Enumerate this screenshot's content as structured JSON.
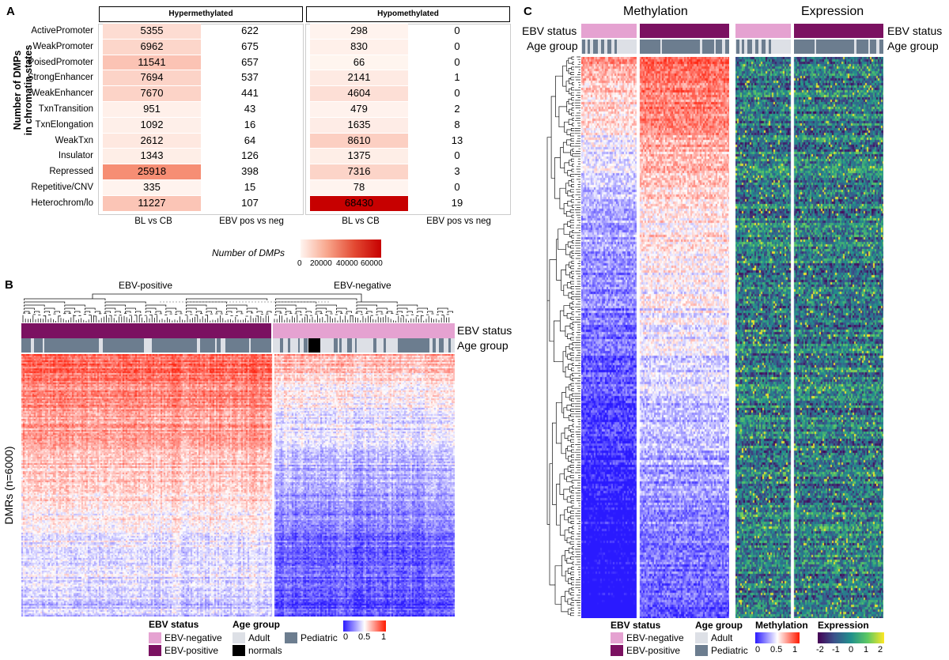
{
  "panel_a": {
    "letter": "A",
    "strip_hyper": "Hypermethylated",
    "strip_hypo": "Hypomethylated",
    "ylabel_line1": "Number of DMPs",
    "ylabel_line2": "in chromatin states",
    "xlabels": [
      "BL vs CB",
      "EBV pos vs neg",
      "BL vs CB",
      "EBV pos vs neg"
    ],
    "legend_title": "Number of DMPs",
    "legend_ticks": [
      "0",
      "20000",
      "40000",
      "60000"
    ]
  },
  "chart_data": {
    "type": "heatmap",
    "title": "Number of DMPs in chromatin states",
    "rows": [
      "ActivePromoter",
      "WeakPromoter",
      "PoisedPromoter",
      "StrongEnhancer",
      "WeakEnhancer",
      "TxnTransition",
      "TxnElongation",
      "WeakTxn",
      "Insulator",
      "Repressed",
      "Repetitive/CNV",
      "Heterochrom/lo"
    ],
    "columns": [
      "Hypermethylated BL vs CB",
      "Hypermethylated EBV pos vs neg",
      "Hypomethylated BL vs CB",
      "Hypomethylated EBV pos vs neg"
    ],
    "values": [
      [
        5355,
        622,
        298,
        0
      ],
      [
        6962,
        675,
        830,
        0
      ],
      [
        11541,
        657,
        66,
        0
      ],
      [
        7694,
        537,
        2141,
        1
      ],
      [
        7670,
        441,
        4604,
        0
      ],
      [
        951,
        43,
        479,
        2
      ],
      [
        1092,
        16,
        1635,
        8
      ],
      [
        2612,
        64,
        8610,
        13
      ],
      [
        1343,
        126,
        1375,
        0
      ],
      [
        25918,
        398,
        7316,
        3
      ],
      [
        335,
        15,
        78,
        0
      ],
      [
        11227,
        107,
        68430,
        19
      ]
    ],
    "color_range": [
      0,
      68430
    ]
  },
  "panel_b": {
    "letter": "B",
    "group_pos": "EBV-positive",
    "group_neg": "EBV-negative",
    "ann_ebv": "EBV status",
    "ann_age": "Age group",
    "ylabel": "DMRs (n=6000)",
    "legend_ebv_title": "EBV status",
    "legend_ebv_neg": "EBV-negative",
    "legend_ebv_pos": "EBV-positive",
    "legend_age_title": "Age group",
    "legend_adult": "Adult",
    "legend_pediatric": "Pediatric",
    "legend_normals": "normals",
    "scale_ticks": [
      "0",
      "0.5",
      "1"
    ]
  },
  "panel_c": {
    "letter": "C",
    "title_meth": "Methylation",
    "title_expr": "Expression",
    "ann_ebv": "EBV status",
    "ann_age": "Age group",
    "legend_ebv_title": "EBV status",
    "legend_ebv_neg": "EBV-negative",
    "legend_ebv_pos": "EBV-positive",
    "legend_age_title": "Age group",
    "legend_adult": "Adult",
    "legend_pediatric": "Pediatric",
    "legend_meth_title": "Methylation",
    "meth_ticks": [
      "0",
      "0.5",
      "1"
    ],
    "legend_expr_title": "Expression",
    "expr_ticks": [
      "-2",
      "-1",
      "0",
      "1",
      "2"
    ]
  },
  "colors": {
    "ebv_negative": "#e5a2d1",
    "ebv_positive": "#7b1161",
    "adult": "#dde0e6",
    "pediatric": "#6c7d8f",
    "normals": "#000000",
    "count_high": "#c70000"
  }
}
